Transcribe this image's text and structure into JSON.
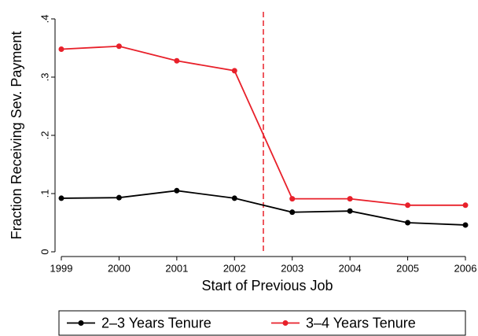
{
  "chart_data": {
    "type": "line",
    "xlabel": "Start of Previous Job",
    "ylabel": "Fraction Receiving Sev. Payment",
    "x": [
      1999,
      2000,
      2001,
      2002,
      2003,
      2004,
      2005,
      2006
    ],
    "series": [
      {
        "name": "2–3 Years Tenure",
        "color": "#000000",
        "values": [
          0.092,
          0.093,
          0.105,
          0.092,
          0.068,
          0.07,
          0.05,
          0.046
        ]
      },
      {
        "name": "3–4 Years Tenure",
        "color": "#e8202a",
        "values": [
          0.348,
          0.353,
          0.328,
          0.311,
          0.091,
          0.091,
          0.08,
          0.08
        ]
      }
    ],
    "xlim": [
      1999,
      2006
    ],
    "xticks": [
      1999,
      2000,
      2001,
      2002,
      2003,
      2004,
      2005,
      2006
    ],
    "ylim": [
      0,
      0.4
    ],
    "yticks": [
      0,
      {
        "value": 0.1,
        "label": ".1"
      },
      {
        "value": 0.2,
        "label": ".2"
      },
      {
        "value": 0.3,
        "label": ".3"
      },
      {
        "value": 0.4,
        "label": ".4"
      }
    ],
    "vline": 2002.5,
    "vline_color": "#e8202a",
    "grid": false,
    "legend": "bottom"
  }
}
